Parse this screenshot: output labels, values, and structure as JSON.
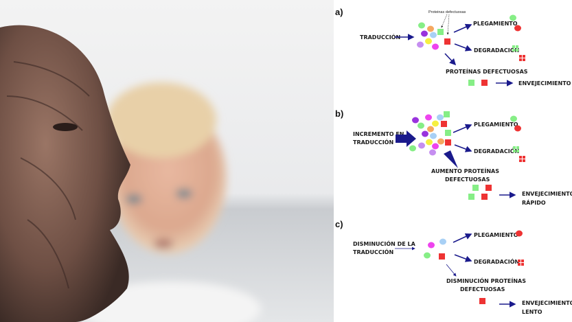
{
  "colors": {
    "arrow": "#1a1a8c",
    "green": "#86ee86",
    "red": "#ee3333",
    "purple": "#9933dd",
    "orange": "#f5a860",
    "lightblue": "#a8d0f5",
    "yellow": "#f5f040",
    "lavender": "#c58ef0",
    "magenta": "#ee44ee"
  },
  "photo": {
    "description_icon": "photo-elderly-man-and-baby"
  },
  "panel_a": {
    "label": "a)",
    "note": "Proteinas defectuosas",
    "input": "TRADUCCIÓN",
    "folding": "PLEGAMIENTO",
    "degradation": "DEGRADACIÓN",
    "defective": "PROTEÍNAS DEFECTUOSAS",
    "outcome": "ENVEJECIMIENTO"
  },
  "panel_b": {
    "label": "b)",
    "input_line1": "INCREMENTO EN",
    "input_line2": "TRADUCCIÓN",
    "folding": "PLEGAMIENTO",
    "degradation": "DEGRADACIÓN",
    "defective_line1": "AUMENTO PROTEÍNAS",
    "defective_line2": "DEFECTUOSAS",
    "outcome_line1": "ENVEJECIMIENTO",
    "outcome_line2": "RÁPIDO"
  },
  "panel_c": {
    "label": "c)",
    "input_line1": "DISMINUCIÓN DE LA",
    "input_line2": "TRADUCCIÓN",
    "folding": "PLEGAMIENTO",
    "degradation": "DEGRADACIÓN",
    "defective_line1": "DISMINUCIÓN PROTEÍNAS",
    "defective_line2": "DEFECTUOSAS",
    "outcome_line1": "ENVEJECIMIENTO",
    "outcome_line2": "LENTO"
  }
}
